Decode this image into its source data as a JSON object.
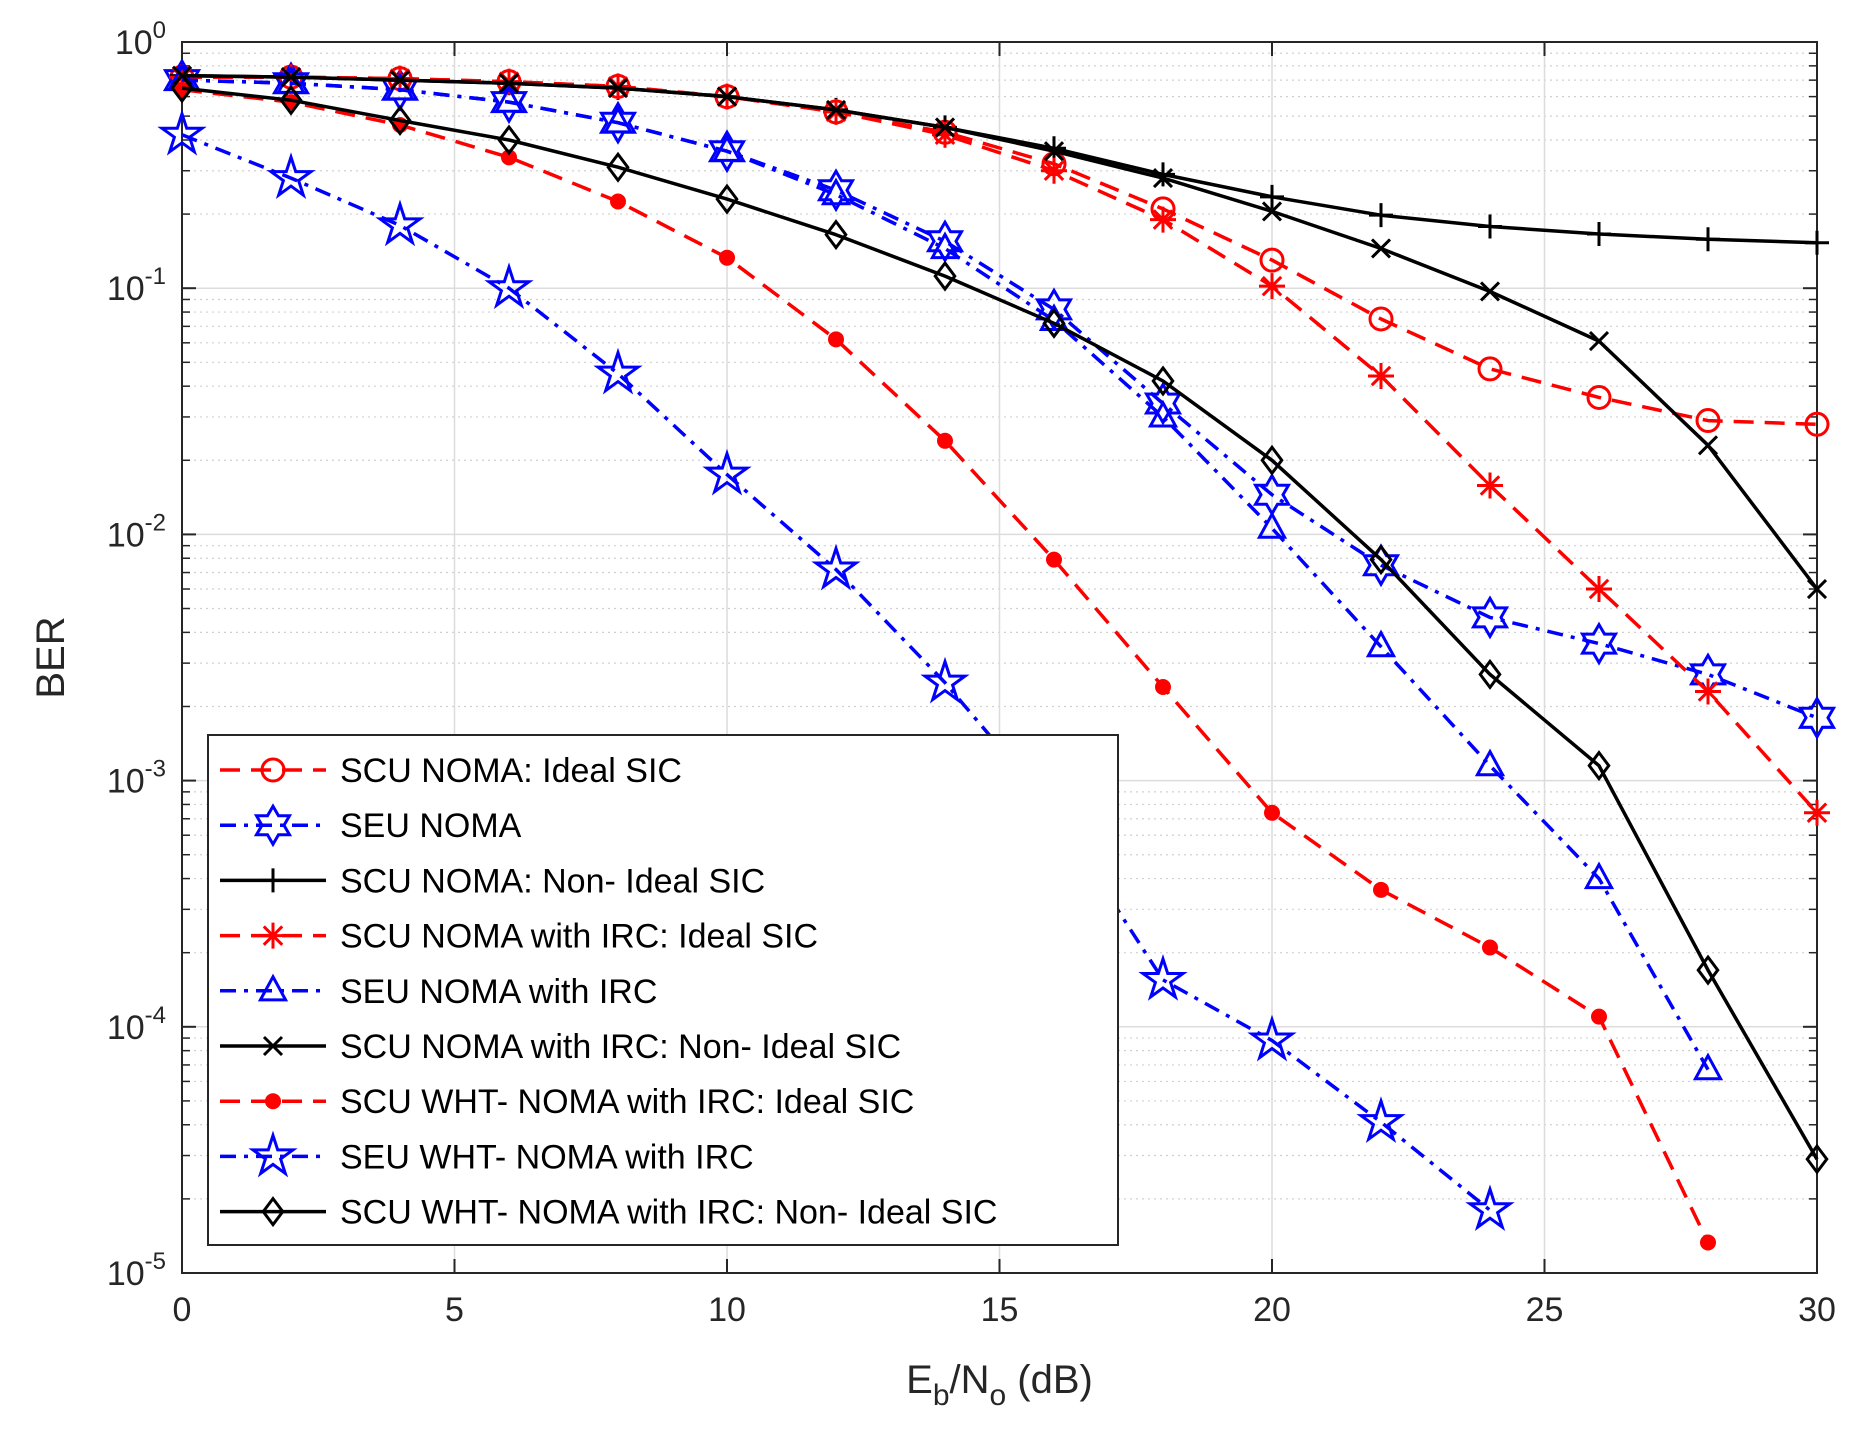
{
  "chart_data": {
    "type": "line",
    "title": "",
    "xlabel": {
      "main": "E",
      "sub1": "b",
      "mid": "/N",
      "sub2": "o",
      "tail": " (dB)"
    },
    "ylabel": "BER",
    "xlim": [
      0,
      30
    ],
    "ylim": [
      1e-05,
      1
    ],
    "yscale": "log",
    "grid": true,
    "minor_grid": true,
    "legend_position": "bottom-left",
    "x_ticks": [
      "0",
      "5",
      "10",
      "15",
      "20",
      "25",
      "30"
    ],
    "y_ticks": [
      {
        "base": "10",
        "exp": "0"
      },
      {
        "base": "10",
        "exp": "-1"
      },
      {
        "base": "10",
        "exp": "-2"
      },
      {
        "base": "10",
        "exp": "-3"
      },
      {
        "base": "10",
        "exp": "-4"
      },
      {
        "base": "10",
        "exp": "-5"
      }
    ],
    "series": [
      {
        "name": "SCU NOMA: Ideal SIC",
        "color": "#ff0000",
        "dash": "dashed",
        "marker": "circle",
        "x": [
          0,
          2,
          4,
          6,
          8,
          10,
          12,
          14,
          16,
          18,
          20,
          22,
          24,
          26,
          28,
          30
        ],
        "y": [
          0.72,
          0.72,
          0.71,
          0.69,
          0.66,
          0.6,
          0.52,
          0.43,
          0.32,
          0.21,
          0.13,
          0.075,
          0.047,
          0.036,
          0.029,
          0.028
        ]
      },
      {
        "name": "SEU NOMA",
        "color": "#0000ff",
        "dash": "dashdot",
        "marker": "hexagram",
        "x": [
          0,
          2,
          4,
          6,
          8,
          10,
          12,
          14,
          16,
          18,
          20,
          22,
          24,
          26,
          28,
          30
        ],
        "y": [
          0.7,
          0.68,
          0.64,
          0.57,
          0.47,
          0.36,
          0.25,
          0.155,
          0.082,
          0.034,
          0.0145,
          0.0075,
          0.0046,
          0.0036,
          0.0027,
          0.0018
        ]
      },
      {
        "name": "SCU NOMA: Non- Ideal SIC",
        "color": "#000000",
        "dash": "solid",
        "marker": "plus",
        "x": [
          0,
          2,
          4,
          6,
          8,
          10,
          12,
          14,
          16,
          18,
          20,
          22,
          24,
          26,
          28,
          30
        ],
        "y": [
          0.73,
          0.72,
          0.7,
          0.68,
          0.65,
          0.6,
          0.53,
          0.45,
          0.37,
          0.29,
          0.235,
          0.198,
          0.178,
          0.166,
          0.158,
          0.153
        ]
      },
      {
        "name": "SCU NOMA with IRC: Ideal SIC",
        "color": "#ff0000",
        "dash": "dashed",
        "marker": "asterisk",
        "x": [
          0,
          2,
          4,
          6,
          8,
          10,
          12,
          14,
          16,
          18,
          20,
          22,
          24,
          26,
          28,
          30
        ],
        "y": [
          0.72,
          0.72,
          0.71,
          0.69,
          0.66,
          0.6,
          0.52,
          0.42,
          0.3,
          0.19,
          0.102,
          0.044,
          0.0158,
          0.006,
          0.0023,
          0.00074
        ]
      },
      {
        "name": "SEU NOMA with IRC",
        "color": "#0000ff",
        "dash": "dashdot",
        "marker": "triangle",
        "x": [
          0,
          2,
          4,
          6,
          8,
          10,
          12,
          14,
          16,
          18,
          20,
          22,
          24,
          26,
          28
        ],
        "y": [
          0.7,
          0.68,
          0.64,
          0.57,
          0.47,
          0.36,
          0.24,
          0.145,
          0.074,
          0.03,
          0.0106,
          0.0035,
          0.00115,
          0.0004,
          6.7e-05
        ]
      },
      {
        "name": "SCU NOMA with IRC: Non- Ideal SIC",
        "color": "#000000",
        "dash": "solid",
        "marker": "x",
        "x": [
          0,
          2,
          4,
          6,
          8,
          10,
          12,
          14,
          16,
          18,
          20,
          22,
          24,
          26,
          28,
          30
        ],
        "y": [
          0.73,
          0.72,
          0.7,
          0.68,
          0.65,
          0.6,
          0.53,
          0.45,
          0.36,
          0.28,
          0.205,
          0.145,
          0.097,
          0.061,
          0.023,
          0.006
        ]
      },
      {
        "name": "SCU WHT- NOMA with IRC: Ideal SIC",
        "color": "#ff0000",
        "dash": "dashed",
        "marker": "dot",
        "x": [
          0,
          2,
          4,
          6,
          8,
          10,
          12,
          14,
          16,
          18,
          20,
          22,
          24,
          26,
          28
        ],
        "y": [
          0.64,
          0.57,
          0.46,
          0.34,
          0.225,
          0.133,
          0.062,
          0.024,
          0.0079,
          0.0024,
          0.00074,
          0.00036,
          0.00021,
          0.00011,
          1.33e-05
        ]
      },
      {
        "name": "SEU WHT- NOMA with IRC",
        "color": "#0000ff",
        "dash": "dashdot",
        "marker": "pentagram",
        "x": [
          0,
          2,
          4,
          6,
          8,
          10,
          12,
          14,
          16,
          18,
          20,
          22,
          24
        ],
        "y": [
          0.42,
          0.28,
          0.18,
          0.1,
          0.045,
          0.0175,
          0.0072,
          0.0025,
          0.00075,
          0.000155,
          8.8e-05,
          4.1e-05,
          1.8e-05
        ]
      },
      {
        "name": "SCU WHT- NOMA with IRC: Non- Ideal SIC",
        "color": "#000000",
        "dash": "solid",
        "marker": "diamond",
        "x": [
          0,
          2,
          4,
          6,
          8,
          10,
          12,
          14,
          16,
          18,
          20,
          22,
          24,
          26,
          28,
          30
        ],
        "y": [
          0.65,
          0.58,
          0.48,
          0.4,
          0.31,
          0.23,
          0.165,
          0.112,
          0.072,
          0.042,
          0.02,
          0.0079,
          0.0027,
          0.00115,
          0.00017,
          2.9e-05
        ]
      }
    ]
  }
}
